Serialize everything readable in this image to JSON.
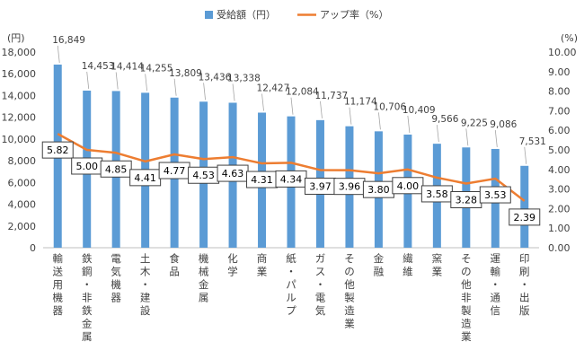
{
  "chart_data": {
    "type": "bar",
    "categories": [
      "輸送用機器",
      "鉄鋼・非鉄金属",
      "電気機器",
      "土木・建設",
      "食品",
      "機械金属",
      "化学",
      "商業",
      "紙・パルプ",
      "ガス・電気",
      "その他製造業",
      "金融",
      "繊維",
      "窯業",
      "その他非製造業",
      "運輸・通信",
      "印刷・出版"
    ],
    "series": [
      {
        "name": "受給額（円）",
        "type": "bar",
        "axis": "left",
        "color": "#5B9BD5",
        "values": [
          16849,
          14453,
          14414,
          14255,
          13809,
          13436,
          13338,
          12427,
          12084,
          11737,
          11174,
          10706,
          10409,
          9566,
          9225,
          9086,
          7531
        ],
        "labels": [
          "16,849",
          "14,453",
          "14,414",
          "14,255",
          "13,809",
          "13,436",
          "13,338",
          "12,427",
          "12,084",
          "11,737",
          "11,174",
          "10,706",
          "10,409",
          "9,566",
          "9,225",
          "9,086",
          "7,531"
        ]
      },
      {
        "name": "アップ率（%）",
        "type": "line",
        "axis": "right",
        "color": "#ED7D31",
        "values": [
          5.82,
          5.0,
          4.85,
          4.41,
          4.77,
          4.53,
          4.63,
          4.31,
          4.34,
          3.97,
          3.96,
          3.8,
          4.0,
          3.58,
          3.28,
          3.53,
          2.39
        ],
        "labels": [
          "5.82",
          "5.00",
          "4.85",
          "4.41",
          "4.77",
          "4.53",
          "4.63",
          "4.31",
          "4.34",
          "3.97",
          "3.96",
          "3.80",
          "4.00",
          "3.58",
          "3.28",
          "3.53",
          "2.39"
        ]
      }
    ],
    "y_left": {
      "unit": "(円)",
      "range": [
        0,
        18000
      ],
      "ticks": [
        "0",
        "2,000",
        "4,000",
        "6,000",
        "8,000",
        "10,000",
        "12,000",
        "14,000",
        "16,000",
        "18,000"
      ]
    },
    "y_right": {
      "unit": "(%)",
      "range": [
        0,
        10
      ],
      "ticks": [
        "0.00",
        "1.00",
        "2.00",
        "3.00",
        "4.00",
        "5.00",
        "6.00",
        "7.00",
        "8.00",
        "9.00",
        "10.00"
      ]
    },
    "legend": {
      "position": "top"
    },
    "grid": false
  }
}
